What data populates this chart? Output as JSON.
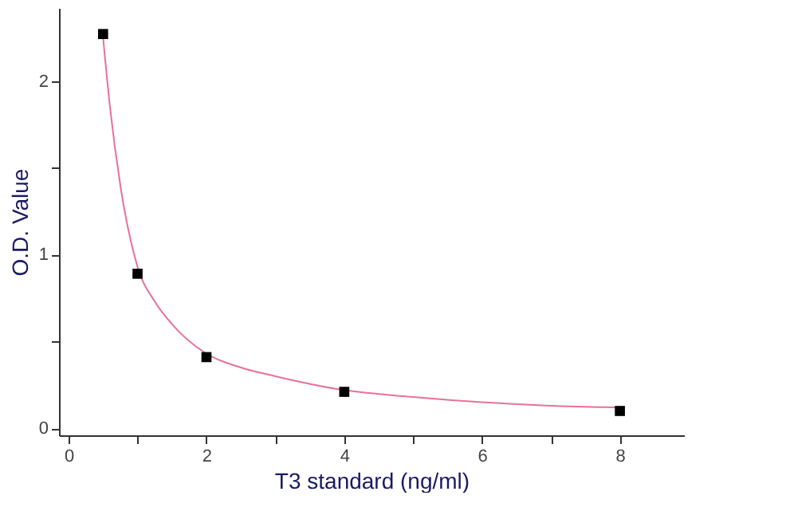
{
  "chart_data": {
    "type": "scatter",
    "xlabel": "T3 standard (ng/ml)",
    "ylabel": "O.D. Value",
    "xlim": [
      -0.14,
      8.93
    ],
    "ylim": [
      -0.04,
      2.42
    ],
    "xticks": [
      0,
      {
        "value": 1,
        "label": null
      },
      2,
      {
        "value": 3,
        "label": null
      },
      4,
      {
        "value": 5,
        "label": null
      },
      6,
      {
        "value": 7,
        "label": null
      },
      8
    ],
    "yticks": [
      0,
      {
        "value": 0.5,
        "label": null
      },
      1,
      {
        "value": 1.5,
        "label": null
      },
      2
    ],
    "grid": false,
    "series": [
      {
        "type": "line",
        "color": "#e8709a",
        "marker": "none",
        "line_style": "solid",
        "x": [
          0.5,
          0.6,
          0.75,
          1,
          1.25,
          1.5,
          2,
          2.5,
          3,
          4,
          5,
          6,
          7,
          8
        ],
        "values": [
          2.25,
          1.85,
          1.4,
          0.93,
          0.73,
          0.6,
          0.43,
          0.35,
          0.3,
          0.22,
          0.18,
          0.15,
          0.13,
          0.12
        ]
      },
      {
        "color": "#000000",
        "marker": "square",
        "x": [
          0.5,
          1,
          2,
          4,
          8
        ],
        "values": [
          2.27,
          0.89,
          0.41,
          0.21,
          0.1
        ]
      }
    ]
  }
}
